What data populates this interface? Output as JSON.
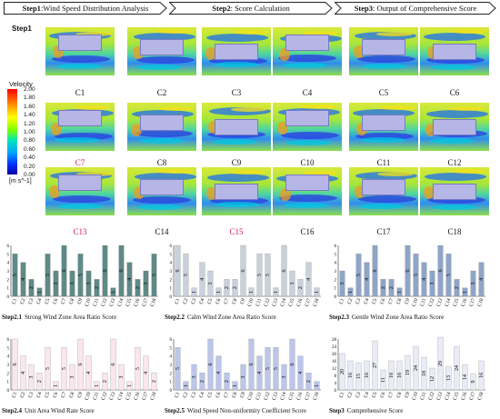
{
  "steps": {
    "s1_label": "Step1",
    "s1_text": ":Wind Speed Distribution Analysis",
    "s2_label": "Step2",
    "s2_text": ": Score Calculation",
    "s3_label": "Step3",
    "s3_text": ": Output of Comprehensive Score"
  },
  "step1_title": "Step1",
  "legend": {
    "title": "Velocity",
    "ticks": [
      "2.00",
      "1.80",
      "1.60",
      "1.40",
      "1.20",
      "1.00",
      "0.80",
      "0.60",
      "0.40",
      "0.20",
      "0.00"
    ],
    "unit": "[m s^-1]"
  },
  "cases": [
    "C1",
    "C2",
    "C3",
    "C4",
    "C5",
    "C6",
    "C7",
    "C8",
    "C9",
    "C10",
    "C11",
    "C12",
    "C13",
    "C14",
    "C15",
    "C16",
    "C17",
    "C18"
  ],
  "case_highlight_color": "#d4146e",
  "highlighted_cases": [
    "C7",
    "C13",
    "C15"
  ],
  "colors": {
    "panel_step2_1": "#5f8a87",
    "panel_step2_2": "#c9d2dc",
    "panel_step2_3": "#8fa5c8",
    "panel_step2_4": "#fbe6ee",
    "panel_step2_5": "#bcc5ea",
    "panel_step3": "#e9ecf7"
  },
  "panels": [
    {
      "step": "Step2.1",
      "title": "Strong Wind Zone Area Ratio Score",
      "labels": [
        "5",
        "4",
        "2",
        "1",
        "5",
        "3",
        "6",
        "3",
        "5",
        "3",
        "2",
        "6",
        "1",
        "6",
        "4",
        "2",
        "3",
        "5"
      ],
      "chart_data": {
        "type": "bar",
        "categories": [
          "C1",
          "C2",
          "C3",
          "C4",
          "C5",
          "C6",
          "C7",
          "C8",
          "C9",
          "C10",
          "C11",
          "C12",
          "C13",
          "C14",
          "C15",
          "C16",
          "C17",
          "C18"
        ],
        "values": [
          5,
          4,
          2,
          1,
          5,
          3,
          6,
          3,
          5,
          3,
          2,
          6,
          1,
          6,
          4,
          2,
          3,
          5
        ],
        "ylim": [
          0,
          6
        ],
        "yticks": [
          "0",
          "1",
          "2",
          "3",
          "4",
          "5",
          "6"
        ]
      }
    },
    {
      "step": "Step2.2",
      "title": "Calm Wind Zone Area Ratio Score",
      "labels": [
        "6",
        "5",
        "1",
        "4",
        "3",
        "1",
        "2",
        "2",
        "6",
        "1",
        "5",
        "5",
        "1",
        "6",
        "3",
        "2",
        "4",
        "1"
      ],
      "chart_data": {
        "type": "bar",
        "categories": [
          "C1",
          "C2",
          "C3",
          "C4",
          "C5",
          "C6",
          "C7",
          "C8",
          "C9",
          "C10",
          "C11",
          "C12",
          "C13",
          "C14",
          "C15",
          "C16",
          "C17",
          "C18"
        ],
        "values": [
          6,
          5,
          1,
          4,
          3,
          1,
          2,
          2,
          6,
          1,
          5,
          5,
          1,
          6,
          3,
          2,
          4,
          1
        ],
        "ylim": [
          0,
          6
        ],
        "yticks": [
          "0",
          "1",
          "2",
          "3",
          "4",
          "5",
          "6"
        ]
      }
    },
    {
      "step": "Step2.3",
      "title": "Gentle Wind Zone Area Ratio Score",
      "labels": [
        "3",
        "1",
        "5",
        "4",
        "6",
        "2",
        "2",
        "1",
        "6",
        "5",
        "4",
        "3",
        "6",
        "5",
        "2",
        "1",
        "3",
        "4"
      ],
      "chart_data": {
        "type": "bar",
        "categories": [
          "C1",
          "C2",
          "C3",
          "C4",
          "C5",
          "C6",
          "C7",
          "C8",
          "C9",
          "C10",
          "C11",
          "C12",
          "C13",
          "C14",
          "C15",
          "C16",
          "C17",
          "C18"
        ],
        "values": [
          3,
          1,
          5,
          4,
          6,
          2,
          2,
          1,
          6,
          5,
          4,
          3,
          6,
          5,
          2,
          1,
          3,
          4
        ],
        "ylim": [
          0,
          6
        ],
        "yticks": [
          "0",
          "1",
          "2",
          "3",
          "4",
          "5",
          "6"
        ]
      }
    },
    {
      "step": "Step2.4",
      "title": "Unit Area Wind Rate Score",
      "labels": [
        "6",
        "4",
        "3",
        "2",
        "5",
        "1",
        "5",
        "3",
        "6",
        "4",
        "1",
        "2",
        "6",
        "3",
        "1",
        "5",
        "4",
        "2"
      ],
      "chart_data": {
        "type": "bar",
        "categories": [
          "C1",
          "C2",
          "C3",
          "C4",
          "C5",
          "C6",
          "C7",
          "C8",
          "C9",
          "C10",
          "C11",
          "C12",
          "C13",
          "C14",
          "C15",
          "C16",
          "C17",
          "C18"
        ],
        "values": [
          6,
          4,
          3,
          2,
          5,
          1,
          5,
          3,
          6,
          4,
          1,
          2,
          6,
          3,
          1,
          5,
          4,
          2
        ],
        "ylim": [
          0,
          6
        ],
        "yticks": [
          "0",
          "1",
          "2",
          "3",
          "4",
          "5",
          "6"
        ]
      }
    },
    {
      "step": "Step2.5",
      "title": "Wind Speed Non-uniformity Coefficient Score",
      "labels": [
        "5",
        "1",
        "3",
        "2",
        "6",
        "4",
        "2",
        "1",
        "3",
        "6",
        "4",
        "5",
        "5",
        "3",
        "6",
        "4",
        "2",
        "1"
      ],
      "chart_data": {
        "type": "bar",
        "categories": [
          "C1",
          "C2",
          "C3",
          "C4",
          "C5",
          "C6",
          "C7",
          "C8",
          "C9",
          "C10",
          "C11",
          "C12",
          "C13",
          "C14",
          "C15",
          "C16",
          "C17",
          "C18"
        ],
        "values": [
          5,
          1,
          3,
          2,
          6,
          4,
          2,
          1,
          3,
          6,
          4,
          5,
          5,
          3,
          6,
          4,
          2,
          1
        ],
        "ylim": [
          0,
          6
        ],
        "yticks": [
          "0",
          "1",
          "2",
          "3",
          "4",
          "5",
          "6"
        ]
      }
    },
    {
      "step": "Step3",
      "title": "Comprehensive Score",
      "labels": [
        "20",
        "16",
        "15",
        "16",
        "27",
        "11",
        "16",
        "16",
        "19",
        "24",
        "18",
        "12",
        "29",
        "13",
        "24",
        "14",
        "9",
        "16"
      ],
      "chart_data": {
        "type": "bar",
        "categories": [
          "C1",
          "C2",
          "C3",
          "C4",
          "C5",
          "C6",
          "C7",
          "C8",
          "C9",
          "C10",
          "C11",
          "C12",
          "C13",
          "C14",
          "C15",
          "C16",
          "C17",
          "C18"
        ],
        "values": [
          20,
          16,
          15,
          16,
          27,
          11,
          16,
          16,
          19,
          24,
          18,
          12,
          29,
          13,
          24,
          14,
          9,
          16
        ],
        "ylim": [
          0,
          28
        ],
        "yticks": [
          "0",
          "4",
          "8",
          "12",
          "16",
          "20",
          "24",
          "28"
        ]
      }
    }
  ]
}
